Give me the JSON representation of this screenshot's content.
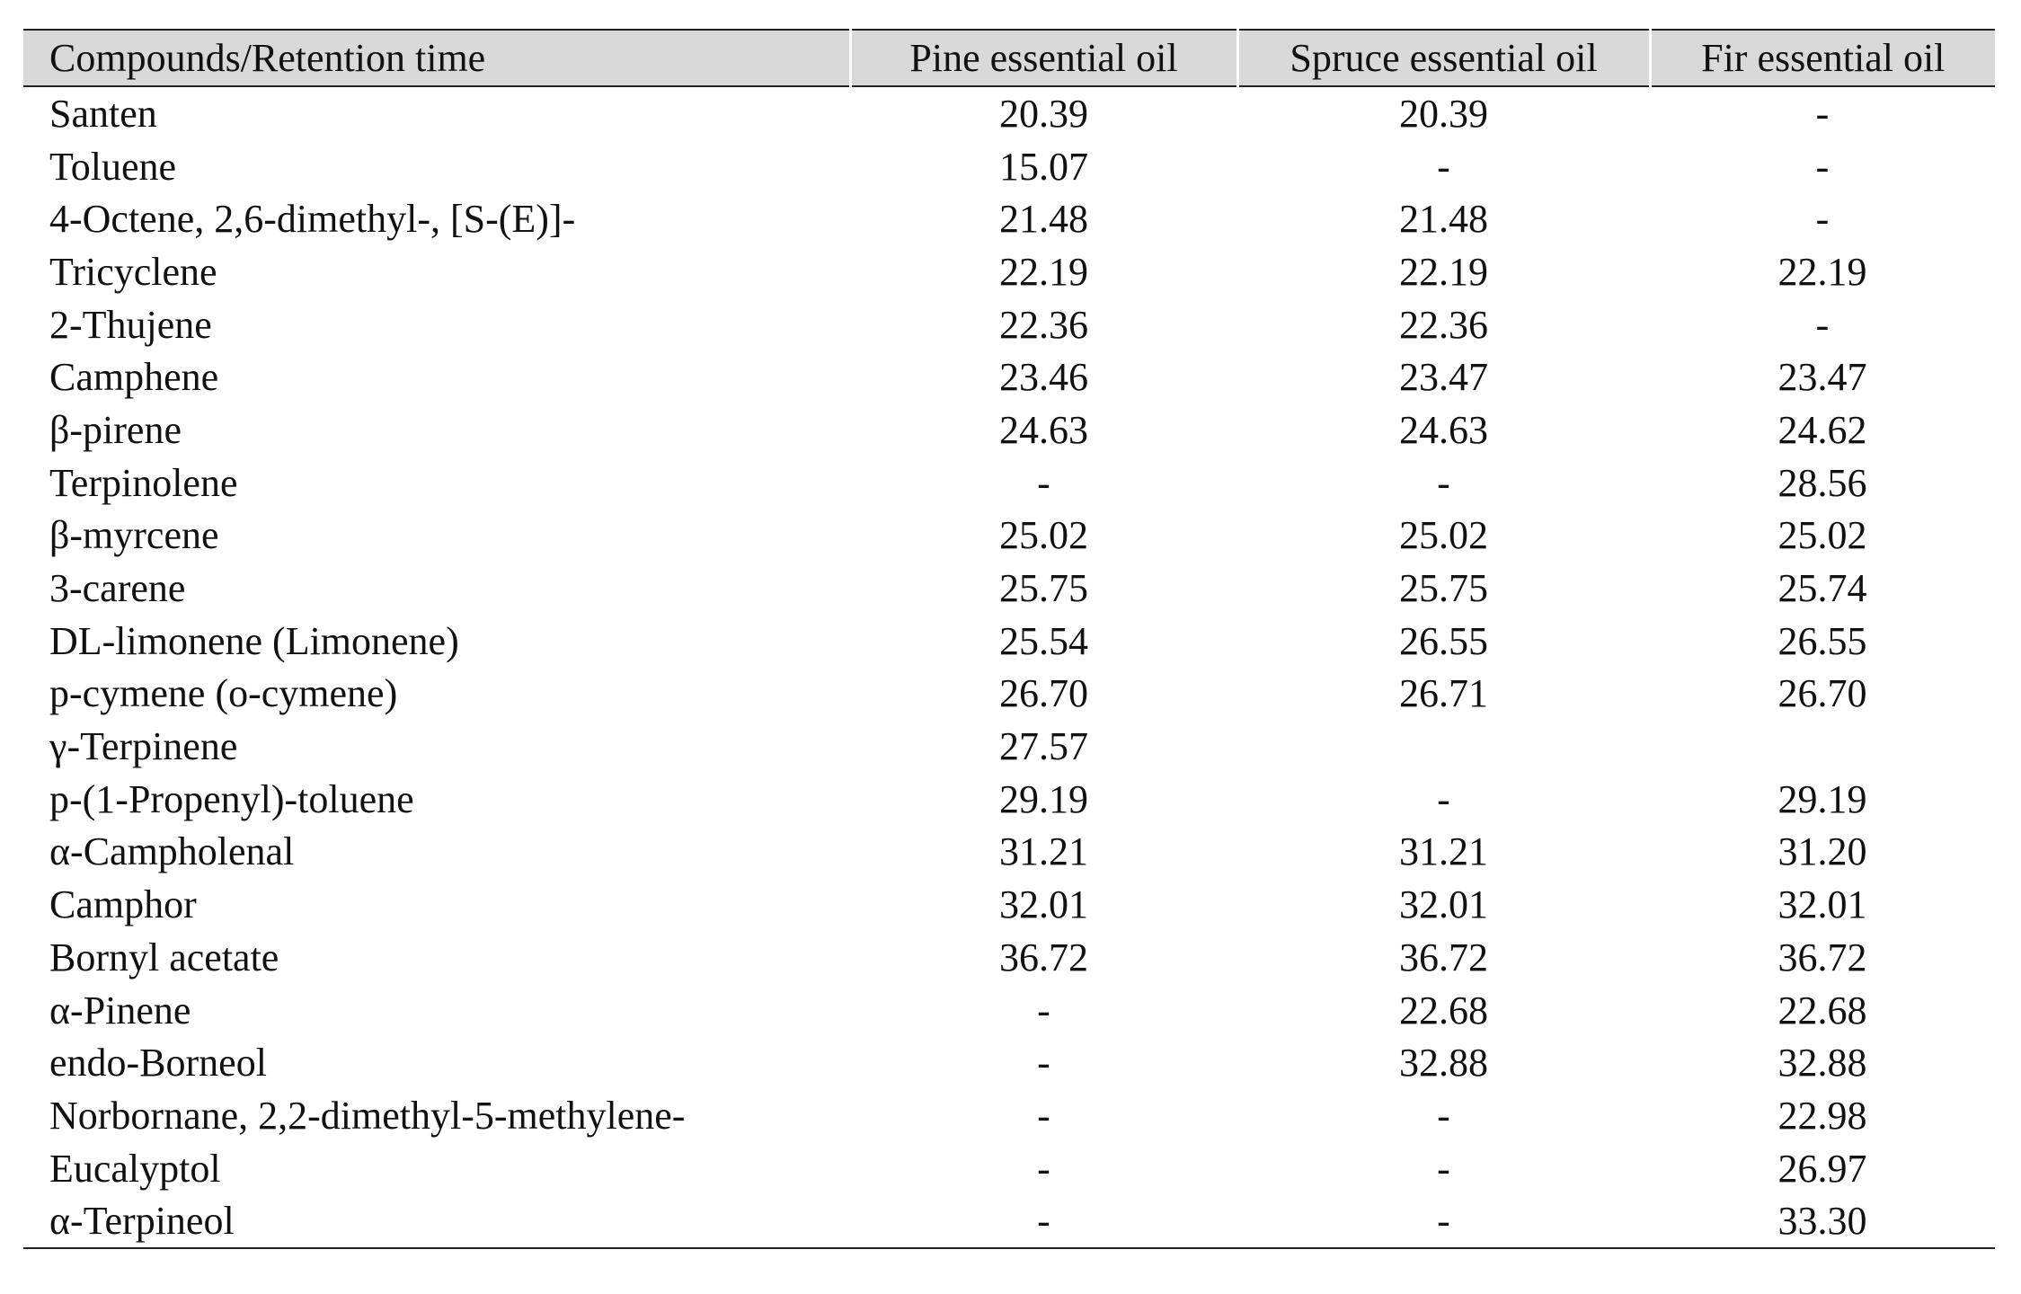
{
  "table": {
    "header": [
      "Compounds/Retention time",
      "Pine essential oil",
      "Spruce essential oil",
      "Fir essential oil"
    ],
    "rows": [
      [
        "Santen",
        "20.39",
        "20.39",
        "-"
      ],
      [
        "Toluene",
        "15.07",
        "-",
        "-"
      ],
      [
        "4-Octene, 2,6-dimethyl-, [S-(E)]-",
        "21.48",
        "21.48",
        "-"
      ],
      [
        "Tricyclene",
        "22.19",
        "22.19",
        "22.19"
      ],
      [
        "2-Thujene",
        "22.36",
        "22.36",
        "-"
      ],
      [
        "Camphene",
        "23.46",
        "23.47",
        "23.47"
      ],
      [
        "β-pirene",
        "24.63",
        "24.63",
        "24.62"
      ],
      [
        "Terpinolene",
        "-",
        "-",
        "28.56"
      ],
      [
        "β-myrcene",
        "25.02",
        "25.02",
        "25.02"
      ],
      [
        "3-carene",
        "25.75",
        "25.75",
        "25.74"
      ],
      [
        "DL-limonene (Limonene)",
        "25.54",
        "26.55",
        "26.55"
      ],
      [
        "p-cymene (o-cymene)",
        "26.70",
        "26.71",
        "26.70"
      ],
      [
        "γ-Terpinene",
        "27.57",
        null,
        null
      ],
      [
        "p-(1-Propenyl)-toluene",
        "29.19",
        "-",
        "29.19"
      ],
      [
        "α-Campholenal",
        "31.21",
        "31.21",
        "31.20"
      ],
      [
        "Camphor",
        "32.01",
        "32.01",
        "32.01"
      ],
      [
        "Bornyl acetate",
        "36.72",
        "36.72",
        "36.72"
      ],
      [
        "α-Pinene",
        "-",
        "22.68",
        "22.68"
      ],
      [
        "endo-Borneol",
        "-",
        "32.88",
        "32.88"
      ],
      [
        "Norbornane, 2,2-dimethyl-5-methylene-",
        "-",
        "-",
        "22.98"
      ],
      [
        "Eucalyptol",
        "-",
        "-",
        "26.97"
      ],
      [
        "α-Terpineol",
        "-",
        "-",
        "33.30"
      ]
    ]
  }
}
